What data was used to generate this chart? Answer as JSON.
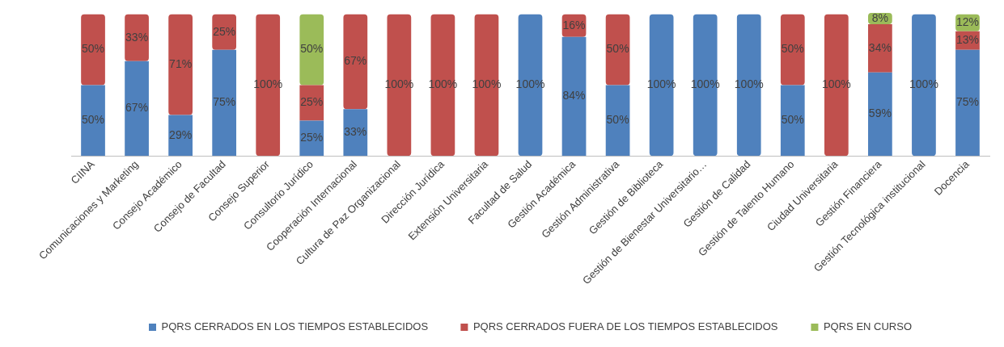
{
  "chart_data": {
    "type": "bar",
    "stacked": true,
    "legend": "bottom",
    "grid": false,
    "categories": [
      "CIINA",
      "Comunicaciones y Marketing",
      "Consejo Académico",
      "Consejo de Facultad",
      "Consejo Superior",
      "Consultorio Jurídico",
      "Cooperación Internacional",
      "Cultura de Paz Organizacional",
      "Dirección Jurídica",
      "Extensión Universitaria",
      "Facultad de Salud",
      "Gestión Académica",
      "Gestión Administrativa",
      "Gestión de Biblioteca",
      "Gestión de Bienestar Universitario…",
      "Gestión de Calidad",
      "Gestión de Talento Humano",
      "Ciudad Universitaria",
      "Gestión Financiera",
      "Gestión Tecnológica institucional",
      "Docencia"
    ],
    "series": [
      {
        "name": "PQRS CERRADOS EN LOS TIEMPOS ESTABLECIDOS",
        "color": "#4f81bd",
        "values": [
          50,
          67,
          29,
          75,
          null,
          25,
          33,
          null,
          null,
          null,
          100,
          84,
          50,
          100,
          100,
          100,
          50,
          null,
          59,
          100,
          75
        ],
        "value_labels": [
          "50%",
          "67%",
          "29%",
          "75%",
          null,
          "25%",
          "33%",
          null,
          null,
          null,
          "100%",
          "84%",
          "50%",
          "100%",
          "100%",
          "100%",
          "50%",
          null,
          "59%",
          "100%",
          "75%"
        ]
      },
      {
        "name": "PQRS CERRADOS FUERA DE LOS TIEMPOS ESTABLECIDOS",
        "color": "#c0504d",
        "values": [
          50,
          33,
          71,
          25,
          100,
          25,
          67,
          100,
          100,
          100,
          null,
          16,
          50,
          null,
          null,
          null,
          50,
          100,
          34,
          null,
          13
        ],
        "value_labels": [
          "50%",
          "33%",
          "71%",
          "25%",
          "100%",
          "25%",
          "67%",
          "100%",
          "100%",
          "100%",
          null,
          "16%",
          "50%",
          null,
          null,
          null,
          "50%",
          "100%",
          "34%",
          null,
          "13%"
        ]
      },
      {
        "name": "PQRS EN CURSO",
        "color": "#9bbb59",
        "values": [
          null,
          null,
          null,
          null,
          null,
          50,
          null,
          null,
          null,
          null,
          null,
          null,
          null,
          null,
          null,
          null,
          null,
          null,
          8,
          null,
          12
        ],
        "value_labels": [
          null,
          null,
          null,
          null,
          null,
          "50%",
          null,
          null,
          null,
          null,
          null,
          null,
          null,
          null,
          null,
          null,
          null,
          null,
          "8%",
          null,
          "12%"
        ]
      }
    ]
  }
}
